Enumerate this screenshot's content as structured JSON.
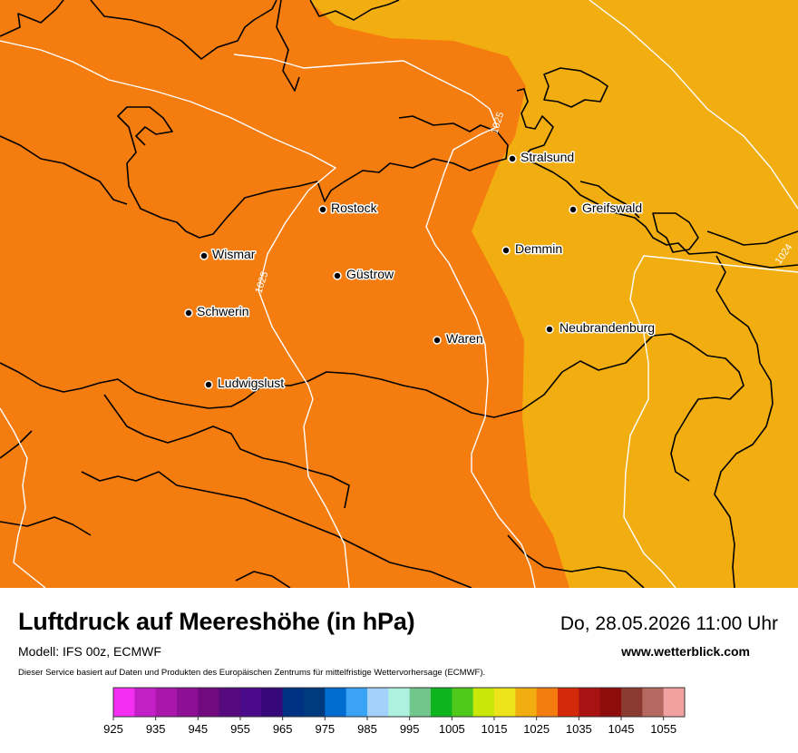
{
  "title": "Luftdruck auf Meereshöhe (in hPa)",
  "datetime": "Do, 28.05.2026 11:00 Uhr",
  "model": "Modell: IFS 00z, ECMWF",
  "website": "www.wetterblick.com",
  "disclaimer": "Dieser Service basiert auf Daten und Produkten des Europäischen Zentrums für mittelfristige Wettervorhersage (ECMWF).",
  "map": {
    "colors": {
      "zone_1025_1030": "#f57c0f",
      "zone_1020_1025": "#f2ad11",
      "isobar": "#ffffff",
      "border": "#000000"
    },
    "isobars": [
      {
        "label": "1025"
      },
      {
        "label": "1025"
      },
      {
        "label": "1024"
      }
    ],
    "cities": [
      {
        "name": "Stralsund"
      },
      {
        "name": "Rostock"
      },
      {
        "name": "Greifswald"
      },
      {
        "name": "Wismar"
      },
      {
        "name": "Demmin"
      },
      {
        "name": "Güstrow"
      },
      {
        "name": "Schwerin"
      },
      {
        "name": "Neubrandenburg"
      },
      {
        "name": "Waren"
      },
      {
        "name": "Ludwigslust"
      }
    ]
  },
  "legend": {
    "colors": [
      "#f42ef2",
      "#c31fc6",
      "#a816ac",
      "#8d0f94",
      "#700a7e",
      "#560a7d",
      "#4a0a8a",
      "#36087a",
      "#003284",
      "#003a7e",
      "#006ccf",
      "#3aa3f6",
      "#a3d1fb",
      "#aef1de",
      "#71c68b",
      "#0db41e",
      "#4ec81b",
      "#c9e80a",
      "#ede31b",
      "#f2ad11",
      "#f57c0f",
      "#d22a0b",
      "#a91213",
      "#8f0c0c",
      "#8b3a32",
      "#b5685f",
      "#f2a1a1"
    ],
    "ticks": [
      "925",
      "935",
      "945",
      "955",
      "965",
      "975",
      "985",
      "995",
      "1005",
      "1015",
      "1025",
      "1035",
      "1045",
      "1055"
    ]
  }
}
